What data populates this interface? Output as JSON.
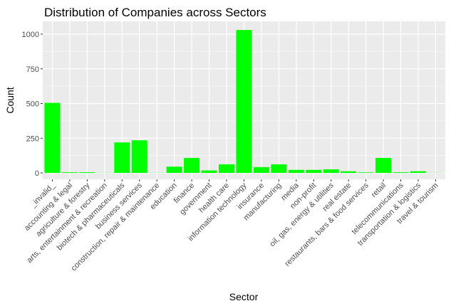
{
  "chart_data": {
    "type": "bar",
    "title": "Distribution of Companies across Sectors",
    "xlabel": "Sector",
    "ylabel": "Count",
    "ylim": [
      0,
      1100
    ],
    "yticks": [
      0,
      250,
      500,
      750,
      1000
    ],
    "grid": true,
    "bar_color": "#00FF00",
    "panel_color": "#EBEBEB",
    "categories": [
      "_invalid_",
      "accounting & legal",
      "agriculture & forestry",
      "arts, entertainment & recreation",
      "biotech & pharmaceuticals",
      "business services",
      "construction, repair & maintenance",
      "education",
      "finance",
      "government",
      "health care",
      "information technology",
      "insurance",
      "manufacturing",
      "media",
      "non-profit",
      "oil, gas, energy & utilities",
      "real estate",
      "restaurants, bars & food services",
      "retail",
      "telecommunications",
      "transportation & logistics",
      "travel & tourism"
    ],
    "values": [
      505,
      5,
      5,
      1,
      220,
      235,
      1,
      45,
      108,
      18,
      62,
      1030,
      42,
      62,
      22,
      22,
      26,
      12,
      4,
      108,
      5,
      12,
      1
    ]
  }
}
